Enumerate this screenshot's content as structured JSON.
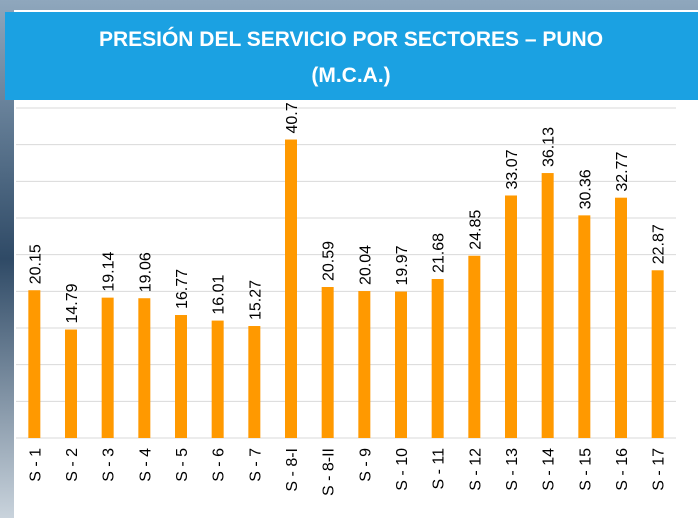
{
  "chart_data": {
    "type": "bar",
    "title": "PRESIÓN DEL SERVICIO POR SECTORES – PUNO",
    "subtitle": "(M.C.A.)",
    "categories": [
      "S - 1",
      "S - 2",
      "S - 3",
      "S - 4",
      "S - 5",
      "S - 6",
      "S - 7",
      "S - 8-I",
      "S - 8-II",
      "S - 9",
      "S - 10",
      "S - 11",
      "S - 12",
      "S - 13",
      "S - 14",
      "S - 15",
      "S - 16",
      "S - 17"
    ],
    "values": [
      20.15,
      14.79,
      19.14,
      19.06,
      16.77,
      16.01,
      15.27,
      40.7,
      20.59,
      20.04,
      19.97,
      21.68,
      24.85,
      33.07,
      36.13,
      30.36,
      32.77,
      22.87
    ],
    "color": "#ff9900",
    "ylim": [
      0,
      45
    ],
    "yticks": [
      0,
      5,
      10,
      15,
      20,
      25,
      30,
      35,
      40,
      45
    ],
    "grid": true
  }
}
